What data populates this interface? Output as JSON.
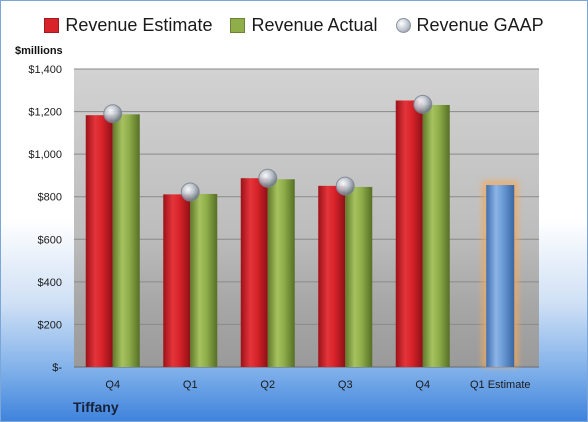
{
  "chart_data": {
    "type": "bar",
    "unit_label": "$millions",
    "company": "Tiffany",
    "categories": [
      "Q4",
      "Q1",
      "Q2",
      "Q3",
      "Q4",
      "Q1 Estimate"
    ],
    "series": [
      {
        "name": "Revenue Estimate",
        "kind": "bar",
        "color": "#d8232a",
        "values": [
          1183,
          811,
          887,
          851,
          1252,
          null
        ]
      },
      {
        "name": "Revenue Actual",
        "kind": "bar",
        "color": "#8fae4a",
        "values": [
          1187,
          813,
          882,
          846,
          1231,
          null
        ]
      },
      {
        "name": "Revenue GAAP",
        "kind": "marker",
        "color": "#b9c0cc",
        "values": [
          1190,
          822,
          887,
          850,
          1234,
          null
        ]
      },
      {
        "name": "Q1 Estimate",
        "kind": "bar",
        "color": "#6a9ad6",
        "highlight": "#f4a95a",
        "values": [
          null,
          null,
          null,
          null,
          null,
          855
        ]
      }
    ],
    "ylim": [
      0,
      1400
    ],
    "yticks": [
      0,
      200,
      400,
      600,
      800,
      1000,
      1200,
      1400
    ],
    "ytick_labels": [
      "$-",
      "$200",
      "$400",
      "$600",
      "$800",
      "$1,000",
      "$1,200",
      "$1,400"
    ],
    "grid": true,
    "legend_position": "top"
  }
}
